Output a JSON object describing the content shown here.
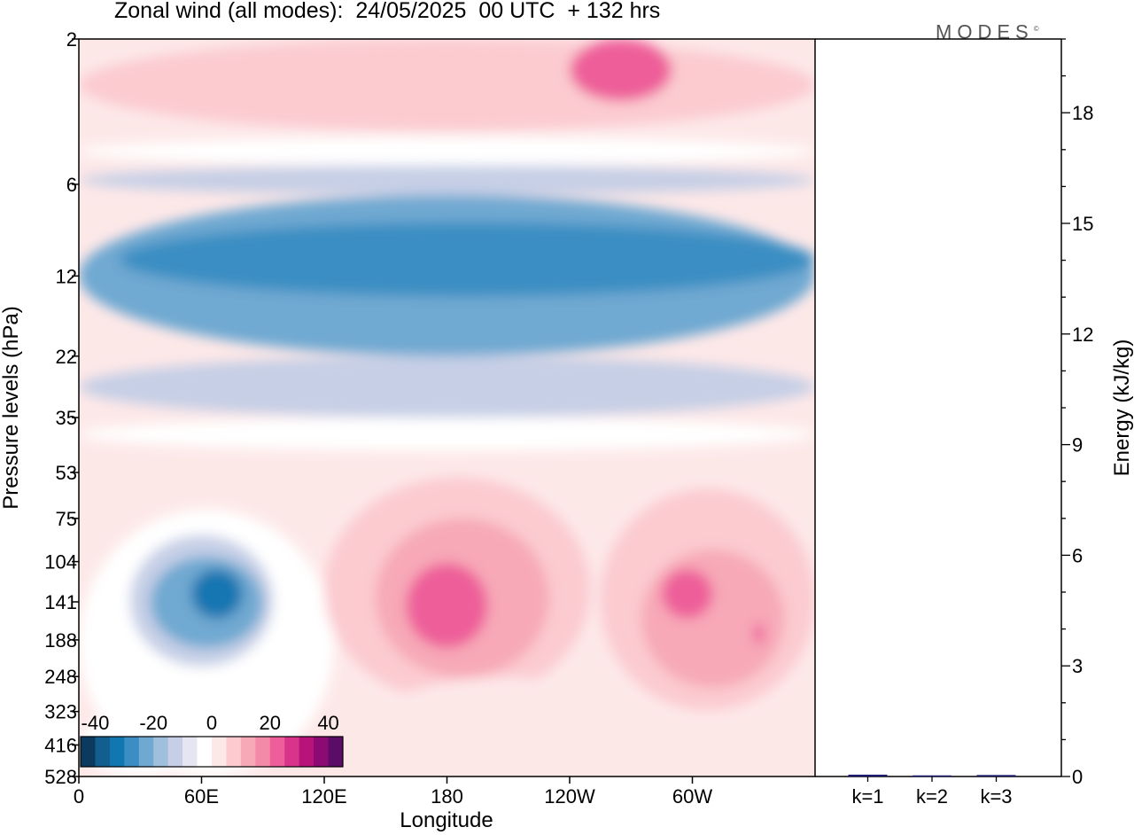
{
  "chart_data": [
    {
      "type": "heatmap",
      "title": "Zonal wind (all modes):  24/05/2025  00 UTC  + 132 hrs",
      "xlabel": "Longitude",
      "ylabel": "Pressure levels (hPa)",
      "x_ticks": [
        "0",
        "60E",
        "120E",
        "180",
        "120W",
        "60W"
      ],
      "x_tick_values": [
        0,
        60,
        120,
        180,
        240,
        300
      ],
      "xlim": [
        0,
        360
      ],
      "y_ticks": [
        "2",
        "6",
        "12",
        "22",
        "35",
        "53",
        "75",
        "104",
        "141",
        "188",
        "248",
        "323",
        "416",
        "528"
      ],
      "y_scale": "log, top = lowest pressure",
      "colorbar": {
        "labels": [
          "-40",
          "-20",
          "0",
          "20",
          "40"
        ],
        "label_values": [
          -40,
          -20,
          0,
          20,
          40
        ],
        "min": -45,
        "max": 45,
        "step": 5,
        "colors": [
          "#0c3a5e",
          "#115e8f",
          "#1276b1",
          "#3b8ec3",
          "#6fa9d1",
          "#9fbfdc",
          "#c6cfe6",
          "#e5e6f1",
          "#ffffff",
          "#fde8e8",
          "#fbcbd0",
          "#f7a9b7",
          "#f38aa8",
          "#ee5e9a",
          "#d9348c",
          "#b8127b",
          "#8b0a73",
          "#5a0c66"
        ]
      },
      "regions": [
        {
          "lon": [
            0,
            360
          ],
          "p": [
            2,
            4
          ],
          "value": 6
        },
        {
          "lon": [
            240,
            290
          ],
          "p": [
            2,
            3.2
          ],
          "value": 22
        },
        {
          "lon": [
            0,
            360
          ],
          "p": [
            4.2,
            5.2
          ],
          "value": -5
        },
        {
          "lon": [
            0,
            360
          ],
          "p": [
            5.2,
            6.5
          ],
          "value": -12
        },
        {
          "lon": [
            0,
            360
          ],
          "p": [
            6.5,
            22
          ],
          "value": -22
        },
        {
          "lon": [
            20,
            360
          ],
          "p": [
            8,
            14
          ],
          "value": -27
        },
        {
          "lon": [
            0,
            360
          ],
          "p": [
            22,
            35
          ],
          "value": -12
        },
        {
          "lon": [
            0,
            360
          ],
          "p": [
            35,
            45
          ],
          "value": -4
        },
        {
          "lon": [
            0,
            125
          ],
          "p": [
            70,
            528
          ],
          "value": -5
        },
        {
          "lon": [
            25,
            95
          ],
          "p": [
            85,
            230
          ],
          "value": -12
        },
        {
          "lon": [
            35,
            90
          ],
          "p": [
            100,
            200
          ],
          "value": -22
        },
        {
          "lon": [
            55,
            80
          ],
          "p": [
            110,
            160
          ],
          "value": -32
        },
        {
          "lon": [
            120,
            250
          ],
          "p": [
            55,
            300
          ],
          "value": 5
        },
        {
          "lon": [
            145,
            230
          ],
          "p": [
            75,
            250
          ],
          "value": 12
        },
        {
          "lon": [
            160,
            200
          ],
          "p": [
            105,
            200
          ],
          "value": 20
        },
        {
          "lon": [
            255,
            360
          ],
          "p": [
            60,
            320
          ],
          "value": 6
        },
        {
          "lon": [
            275,
            345
          ],
          "p": [
            95,
            270
          ],
          "value": 13
        },
        {
          "lon": [
            285,
            310
          ],
          "p": [
            110,
            160
          ],
          "value": 20
        },
        {
          "lon": [
            330,
            335
          ],
          "p": [
            165,
            195
          ],
          "value": 22
        },
        {
          "lon": [
            140,
            280
          ],
          "p": [
            250,
            528
          ],
          "value": 4
        },
        {
          "lon": [
            0,
            60
          ],
          "p": [
            320,
            528
          ],
          "value": -3
        }
      ]
    },
    {
      "type": "bar",
      "ylabel": "Energy (kJ/kg)",
      "categories": [
        "k=1",
        "k=2",
        "k=3"
      ],
      "values": [
        0.05,
        0.03,
        0.04
      ],
      "ylim": [
        0,
        20
      ],
      "y_ticks": [
        0,
        3,
        6,
        9,
        12,
        15,
        18
      ],
      "bar_color": "#1a1a6e"
    }
  ],
  "logo": {
    "text": "MODES",
    "mark": "©"
  }
}
